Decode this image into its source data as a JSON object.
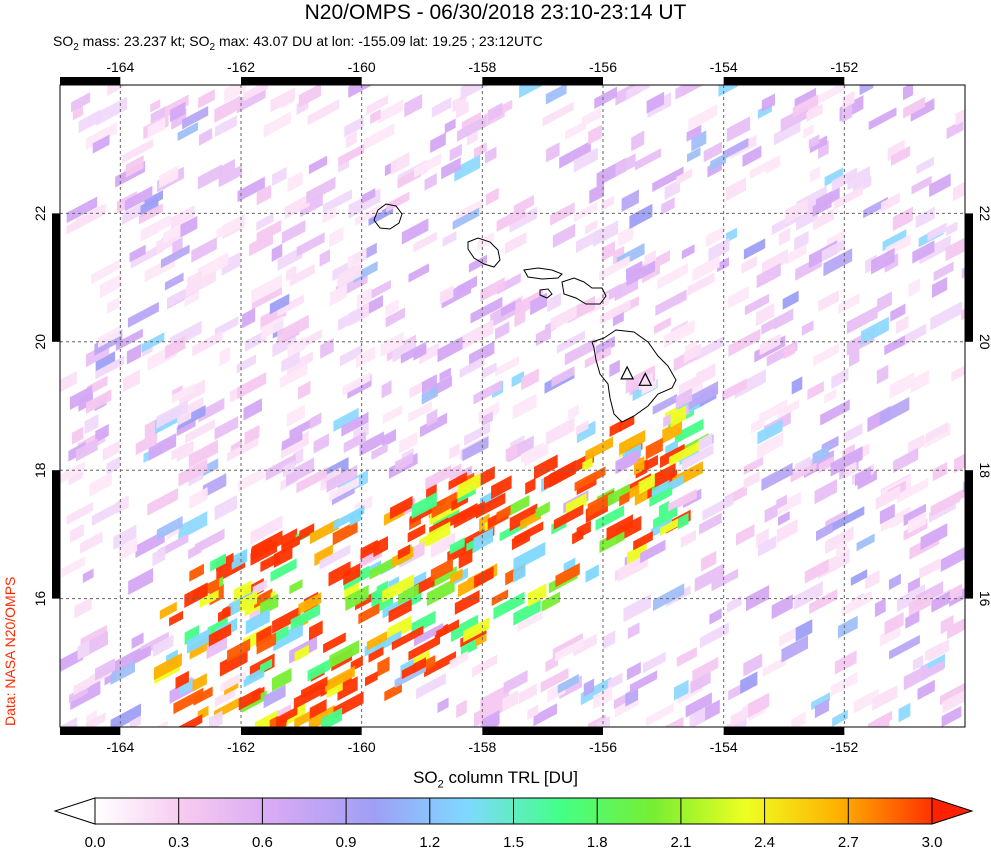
{
  "title": "N20/OMPS - 06/30/2018 23:10-23:14 UT",
  "subtitle": {
    "mass_label": "SO",
    "mass_text": " mass: 23.237 kt; SO",
    "max_text": " max: 43.07 DU at lon: -155.09 lat: 19.25 ; 23:12UTC",
    "sub2": "2"
  },
  "credit": "Data: NASA N20/OMPS",
  "colorbar": {
    "title_pre": "SO",
    "title_sub": "2",
    "title_post": " column TRL [DU]",
    "ticks": [
      "0.0",
      "0.3",
      "0.6",
      "0.9",
      "1.2",
      "1.5",
      "1.8",
      "2.1",
      "2.4",
      "2.7",
      "3.0"
    ],
    "colors": [
      "#ffffff",
      "#f6c8f0",
      "#d4a8f4",
      "#9f9ff5",
      "#7fd8ff",
      "#44ff88",
      "#77ee33",
      "#eeff22",
      "#ffb000",
      "#ff3300"
    ]
  },
  "map": {
    "lon_ticks": [
      "-164",
      "-162",
      "-160",
      "-158",
      "-156",
      "-154",
      "-152"
    ],
    "lat_ticks": [
      "22",
      "20",
      "18",
      "16"
    ],
    "lon_range": [
      -165.0,
      -150.0
    ],
    "lat_range": [
      14.0,
      24.0
    ],
    "volcano_markers": [
      {
        "lon": -155.6,
        "lat": 19.5
      },
      {
        "lon": -155.3,
        "lat": 19.4
      }
    ]
  }
}
